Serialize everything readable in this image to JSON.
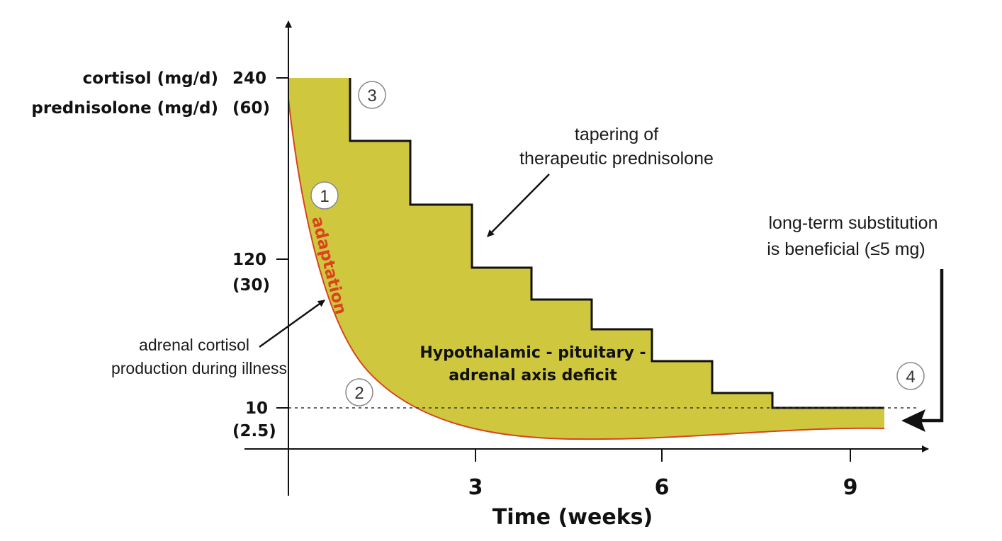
{
  "y_axis": {
    "label_cortisol": "cortisol (mg/d)",
    "label_prednisolone": "prednisolone (mg/d)",
    "ticks": [
      {
        "cortisol": "240",
        "prednisolone": "(60)"
      },
      {
        "cortisol": "120",
        "prednisolone": "(30)"
      },
      {
        "cortisol": "10",
        "prednisolone": "(2.5)"
      }
    ]
  },
  "x_axis": {
    "label": "Time (weeks)",
    "ticks": [
      "3",
      "6",
      "9"
    ]
  },
  "annotations": {
    "tapering_line1": "tapering of",
    "tapering_line2": "therapeutic prednisolone",
    "longterm_line1": "long-term substitution",
    "longterm_line2": "is beneficial (≤5 mg)",
    "adrenal_line1": "adrenal cortisol",
    "adrenal_line2": "production during illness",
    "adaptation": "adaptation",
    "deficit_line1": "Hypothalamic - pituitary -",
    "deficit_line2": "adrenal axis deficit"
  },
  "markers": [
    "1",
    "2",
    "3",
    "4"
  ],
  "colors": {
    "fill": "#cfc83e",
    "curve": "#d9431e",
    "axis": "#111111"
  }
}
